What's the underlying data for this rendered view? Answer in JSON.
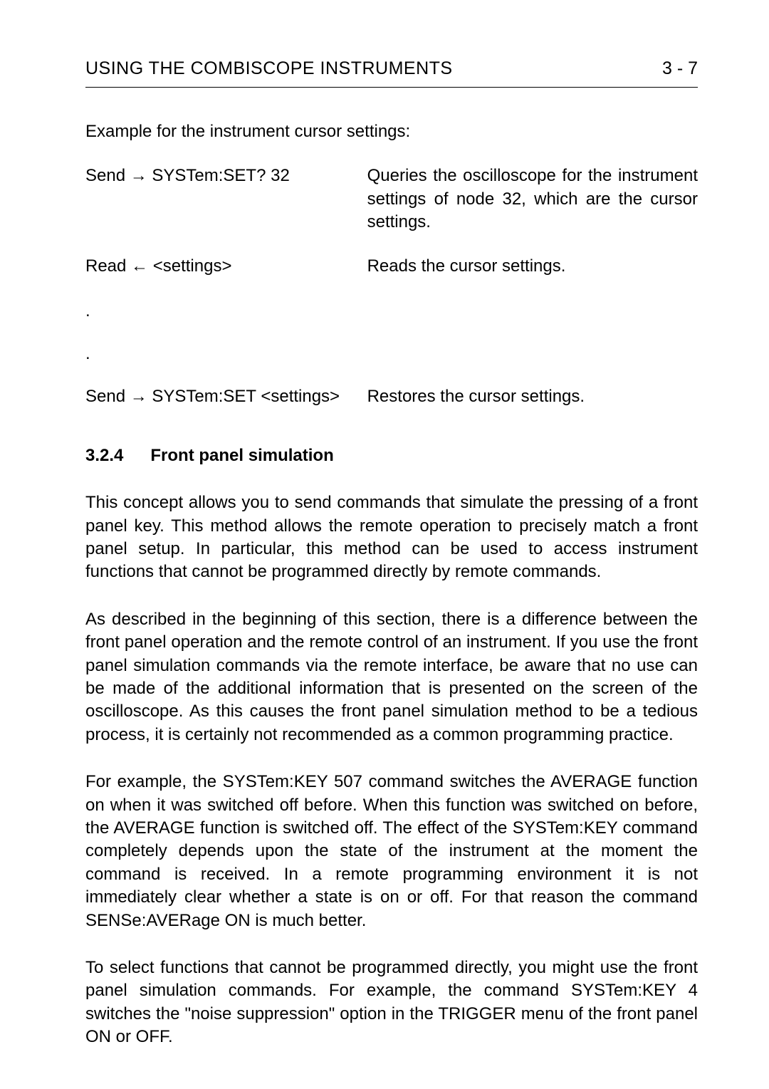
{
  "page": {
    "header_title": "USING THE COMBISCOPE INSTRUMENTS",
    "page_number": "3 - 7"
  },
  "intro": "Example for the instrument cursor settings:",
  "examples": [
    {
      "left": "Send → SYSTem:SET? 32",
      "right": "Queries the oscilloscope for the instrument settings of node 32, which are the cursor settings."
    },
    {
      "left": "Read ← <settings>",
      "right": "Reads the cursor settings."
    }
  ],
  "dots": [
    ".",
    "."
  ],
  "example_last": {
    "left": "Send → SYSTem:SET <settings>",
    "right": "Restores the cursor settings."
  },
  "section": {
    "number": "3.2.4",
    "title": "Front panel simulation"
  },
  "paragraphs": [
    "This concept allows you to send commands that simulate the pressing of a front panel key. This method allows the remote operation to precisely match a front panel setup. In particular, this method can be used to access instrument functions that cannot be programmed directly by remote commands.",
    "As described in the beginning of this section, there is a difference between the front panel operation and the remote control of an instrument. If you use the front panel simulation commands via the remote interface, be aware that no use can be made of the additional information that is presented on the screen of the oscilloscope. As this causes the front panel simulation method to be a tedious process, it is certainly not recommended as a common programming practice.",
    "For example, the SYSTem:KEY 507 command switches the AVERAGE function on when it was switched off before. When this function was switched on before, the AVERAGE function is switched off. The effect of the SYSTem:KEY command completely depends upon the state of the instrument at the moment the command is received. In a remote programming environment it is not immediately clear whether a state is on or off. For that reason the command SENSe:AVERage ON is much better.",
    "To select functions that cannot be programmed directly, you might use the front panel simulation commands. For example, the command SYSTem:KEY 4 switches the \"noise suppression\" option in the TRIGGER menu of the front panel ON or OFF."
  ]
}
